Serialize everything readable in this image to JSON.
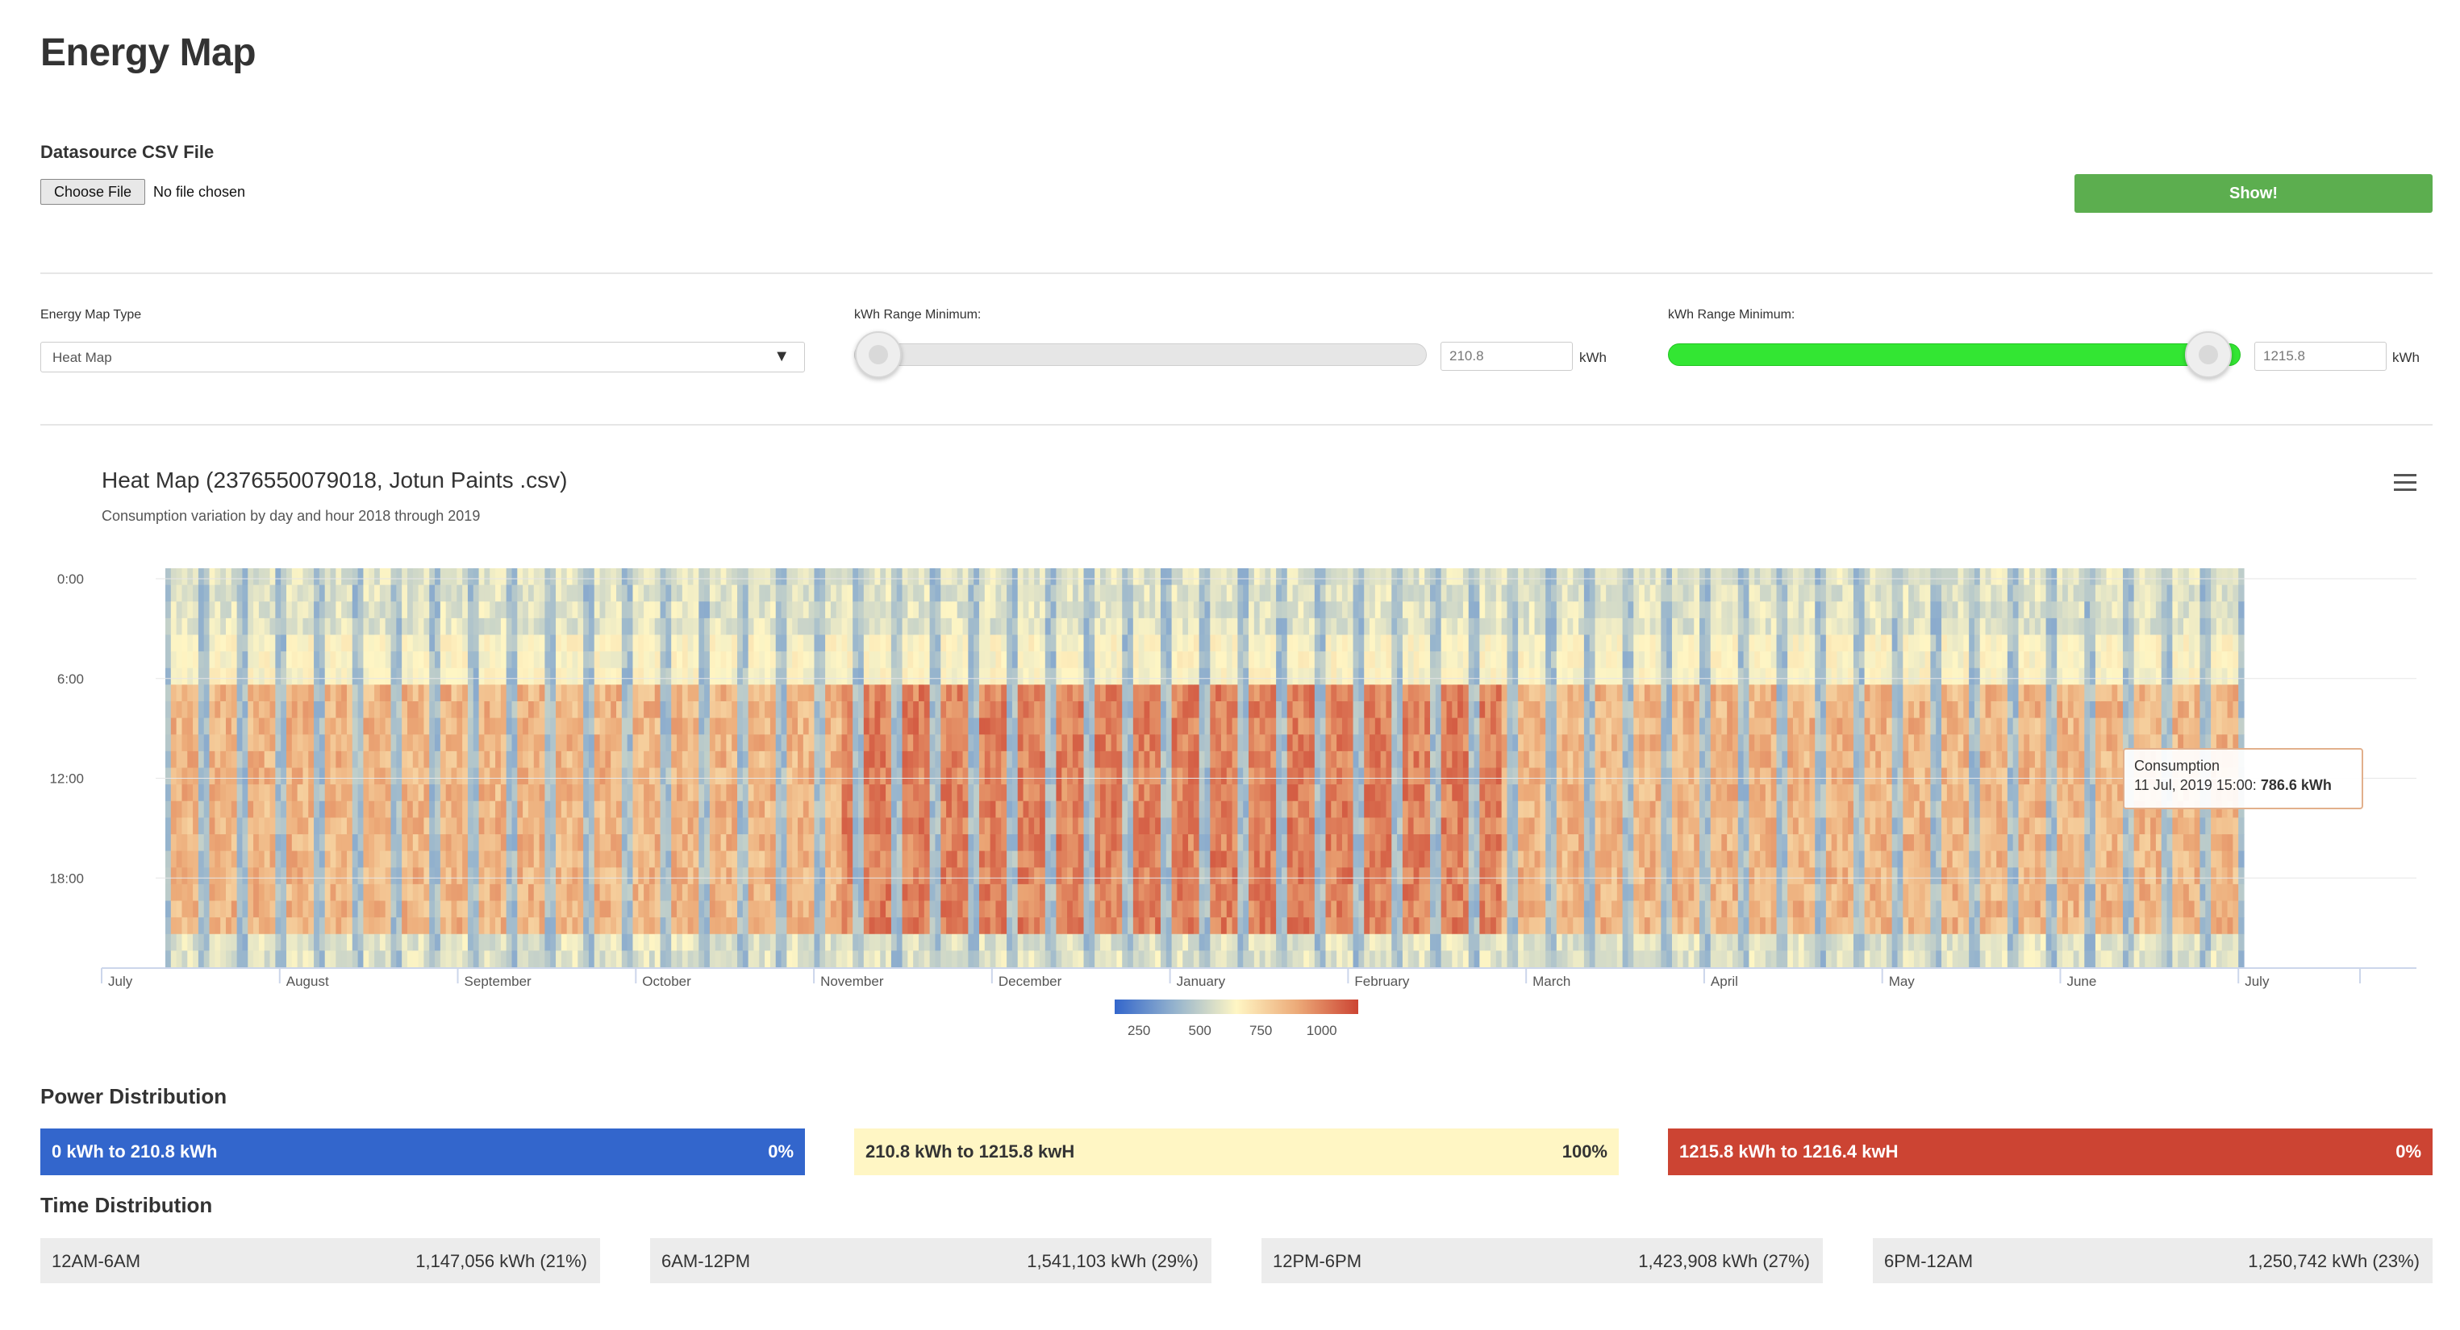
{
  "page": {
    "title": "Energy Map"
  },
  "datasource": {
    "label": "Datasource CSV File",
    "choose_label": "Choose File",
    "file_status": "No file chosen",
    "show_label": "Show!"
  },
  "controls": {
    "map_type": {
      "label": "Energy Map Type",
      "value": "Heat Map"
    },
    "range_min": {
      "label": "kWh Range Minimum:",
      "value": "210.8",
      "unit": "kWh",
      "fraction": 0.0
    },
    "range_max": {
      "label": "kWh Range Minimum:",
      "value": "1215.8",
      "unit": "kWh",
      "fraction": 1.0
    }
  },
  "colors": {
    "accent_green": "#5cae4f",
    "slider_green": "#33e633",
    "low": "#3366cc",
    "mid": "#fff6c4",
    "high": "#cc4433"
  },
  "chart_data": {
    "type": "heatmap",
    "title": "Heat Map (2376550079018, Jotun Paints .csv)",
    "subtitle": "Consumption variation by day and hour 2018 through 2019",
    "y_ticks": [
      "0:00",
      "6:00",
      "12:00",
      "18:00"
    ],
    "x_ticks": [
      "July",
      "August",
      "September",
      "October",
      "November",
      "December",
      "January",
      "February",
      "March",
      "April",
      "May",
      "June",
      "July"
    ],
    "x_range": [
      "2018-07-01",
      "2019-07-14"
    ],
    "y_range": [
      0,
      24
    ],
    "colorbar": {
      "ticks": [
        "250",
        "500",
        "750",
        "1000"
      ],
      "min": 150,
      "max": 1150
    },
    "tooltip": {
      "title": "Consumption",
      "label": "11 Jul, 2019 15:00:",
      "value": "786.6 kWh"
    }
  },
  "power_distribution": {
    "title": "Power Distribution",
    "items": [
      {
        "label": "0 kWh to 210.8 kWh",
        "pct": "0%"
      },
      {
        "label": "210.8 kWh to 1215.8 kwH",
        "pct": "100%"
      },
      {
        "label": "1215.8 kWh to 1216.4 kwH",
        "pct": "0%"
      }
    ]
  },
  "time_distribution": {
    "title": "Time Distribution",
    "items": [
      {
        "label": "12AM-6AM",
        "value": "1,147,056 kWh (21%)"
      },
      {
        "label": "6AM-12PM",
        "value": "1,541,103 kWh (29%)"
      },
      {
        "label": "12PM-6PM",
        "value": "1,423,908 kWh (27%)"
      },
      {
        "label": "6PM-12AM",
        "value": "1,250,742 kWh (23%)"
      }
    ]
  }
}
